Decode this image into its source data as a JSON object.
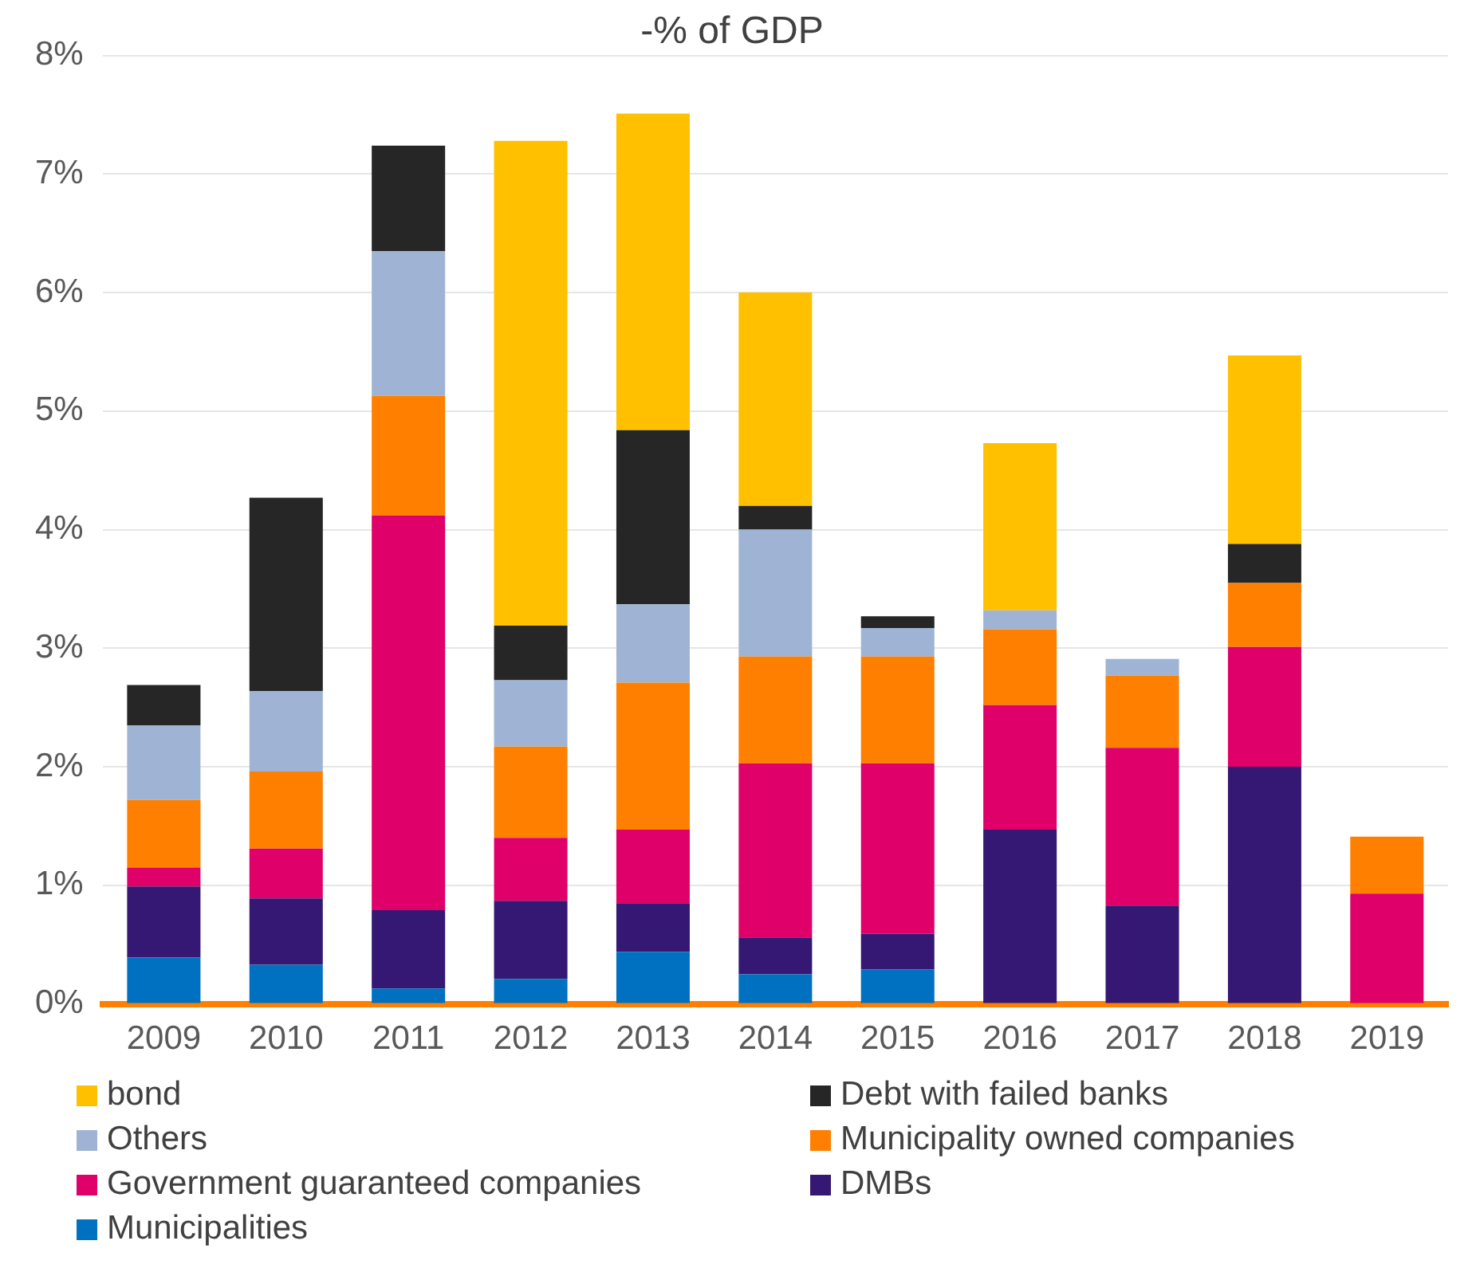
{
  "chart_data": {
    "type": "bar",
    "title": "-% of GDP",
    "stacked": true,
    "grid": "y",
    "legend": "bottom",
    "categories": [
      "2009",
      "2010",
      "2011",
      "2012",
      "2013",
      "2014",
      "2015",
      "2016",
      "2017",
      "2018",
      "2019"
    ],
    "ylim": [
      0,
      8
    ],
    "yticks": [
      {
        "value": 0,
        "label": "0%"
      },
      {
        "value": 1,
        "label": "1%"
      },
      {
        "value": 2,
        "label": "2%"
      },
      {
        "value": 3,
        "label": "3%"
      },
      {
        "value": 4,
        "label": "4%"
      },
      {
        "value": 5,
        "label": "5%"
      },
      {
        "value": 6,
        "label": "6%"
      },
      {
        "value": 7,
        "label": "7%"
      },
      {
        "value": 8,
        "label": "8%"
      }
    ],
    "series": [
      {
        "name": "Municipalities",
        "color": "#0070c0",
        "values": [
          0.39,
          0.33,
          0.13,
          0.21,
          0.44,
          0.25,
          0.29,
          null,
          null,
          null,
          null
        ]
      },
      {
        "name": "DMBs",
        "color": "#341873",
        "values": [
          0.6,
          0.56,
          0.66,
          0.66,
          0.41,
          0.31,
          0.3,
          1.47,
          0.83,
          2.0,
          null
        ]
      },
      {
        "name": "Government guaranteed companies",
        "color": "#e0006a",
        "values": [
          0.16,
          0.42,
          3.33,
          0.53,
          0.62,
          1.47,
          1.44,
          1.05,
          1.33,
          1.01,
          0.93
        ]
      },
      {
        "name": "Municipality owned companies",
        "color": "#ff7f00",
        "values": [
          0.57,
          0.65,
          1.01,
          0.77,
          1.24,
          0.9,
          0.9,
          0.64,
          0.61,
          0.54,
          0.48
        ]
      },
      {
        "name": "Others",
        "color": "#9fb4d4",
        "values": [
          0.63,
          0.68,
          1.22,
          0.56,
          0.66,
          1.07,
          0.24,
          0.16,
          0.14,
          null,
          null
        ]
      },
      {
        "name": "Debt with failed banks",
        "color": "#262626",
        "values": [
          0.34,
          1.63,
          0.89,
          0.46,
          1.47,
          0.2,
          0.1,
          null,
          null,
          0.33,
          null
        ]
      },
      {
        "name": "bond",
        "color": "#ffc000",
        "values": [
          null,
          null,
          null,
          4.09,
          2.67,
          1.8,
          null,
          1.41,
          null,
          1.59,
          null
        ]
      }
    ]
  }
}
